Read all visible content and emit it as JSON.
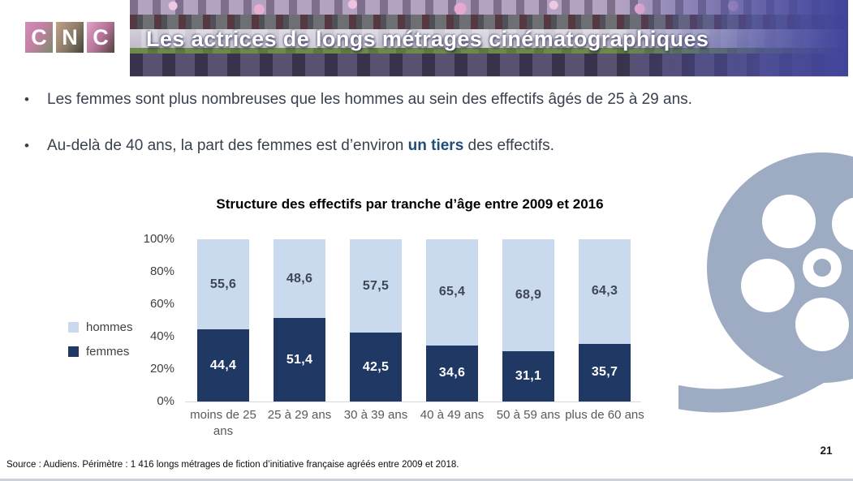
{
  "logo": {
    "letters": [
      "C",
      "N",
      "C"
    ]
  },
  "banner": {
    "title": "Les actrices de longs métrages cinématographiques"
  },
  "bullet_marker": "•",
  "bullets": [
    {
      "pre": "Les femmes sont plus nombreuses que les hommes au sein des effectifs âgés de 25 à 29 ans.",
      "bold": "",
      "post": ""
    },
    {
      "pre": "Au-delà de 40 ans, la part des femmes est d’environ ",
      "bold": "un tiers",
      "post": " des effectifs."
    }
  ],
  "chart_data": {
    "type": "bar",
    "stacked": true,
    "title": "Structure des effectifs par tranche d’âge entre 2009 et 2016",
    "categories": [
      "moins de 25 ans",
      "25 à 29 ans",
      "30 à 39 ans",
      "40 à 49 ans",
      "50 à 59 ans",
      "plus de 60 ans"
    ],
    "series": [
      {
        "name": "femmes",
        "color": "#1f3864",
        "label_color": "#ffffff",
        "values": [
          44.4,
          51.4,
          42.5,
          34.6,
          31.1,
          35.7
        ],
        "labels": [
          "44,4",
          "51,4",
          "42,5",
          "34,6",
          "31,1",
          "35,7"
        ]
      },
      {
        "name": "hommes",
        "color": "#c9d9ee",
        "label_color": "#3f4656",
        "values": [
          55.6,
          48.6,
          57.5,
          65.4,
          68.9,
          64.3
        ],
        "labels": [
          "55,6",
          "48,6",
          "57,5",
          "65,4",
          "68,9",
          "64,3"
        ]
      }
    ],
    "y_ticks": [
      "100%",
      "80%",
      "60%",
      "40%",
      "20%",
      "0%"
    ],
    "ylim": [
      0,
      100
    ],
    "grid": false,
    "legend_position": "left"
  },
  "footer": {
    "source": "Source : Audiens. Périmètre : 1 416 longs métrages de fiction d’initiative française agréés entre 2009 et 2018.",
    "page_number": "21"
  },
  "colors": {
    "navy": "#1f3864",
    "light_blue": "#c9d9ee",
    "reel": "#9dacc2"
  }
}
